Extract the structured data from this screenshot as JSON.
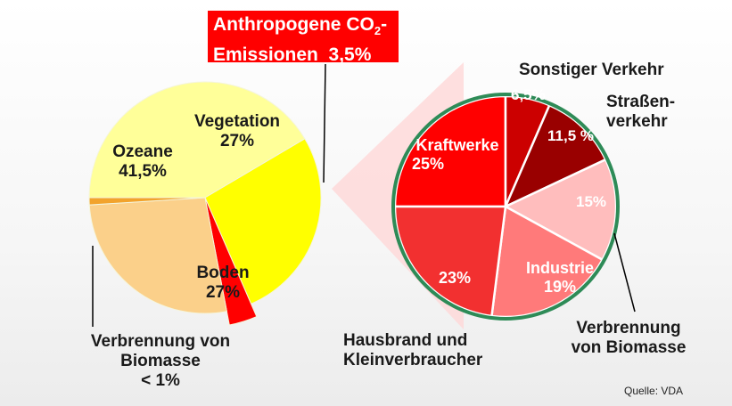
{
  "chart_data": [
    {
      "type": "pie",
      "slices": [
        {
          "label": "Ozeane",
          "value": 41.5,
          "value_label": "41,5%",
          "color": "#ffff99"
        },
        {
          "label": "Vegetation",
          "value": 27,
          "value_label": "27%",
          "color": "#ffff00"
        },
        {
          "label": "Anthropogene CO₂-Emissionen",
          "value": 3.5,
          "value_label": "3,5%",
          "color": "#ff0000"
        },
        {
          "label": "Boden",
          "value": 27,
          "value_label": "27%",
          "color": "#fbd08a"
        },
        {
          "label": "Verbrennung von Biomasse",
          "value": 1,
          "value_label": "< 1%",
          "color": "#f2a32c"
        }
      ]
    },
    {
      "type": "pie",
      "slices": [
        {
          "label": "Kraftwerke",
          "value": 25,
          "value_label": "25%",
          "color": "#ff0000"
        },
        {
          "label": "Sonstiger Verkehr",
          "value": 6.5,
          "value_label": "6,5%",
          "color": "#cc0000"
        },
        {
          "label": "Straßenverkehr",
          "value": 11.5,
          "value_label": "11,5 %",
          "color": "#990000"
        },
        {
          "label": "Verbrennung von Biomasse",
          "value": 15,
          "value_label": "15%",
          "color": "#ffbdbd"
        },
        {
          "label": "Industrie",
          "value": 19,
          "value_label": "19%",
          "color": "#ff7a7a"
        },
        {
          "label": "Hausbrand und Kleinverbraucher",
          "value": 23,
          "value_label": "23%",
          "color": "#f23030"
        }
      ]
    }
  ],
  "callout": {
    "line1": "Anthropogene CO",
    "sub": "2",
    "dash": "-",
    "line2": "Emissionen  3,5%"
  },
  "labels": {
    "ozeane": "Ozeane",
    "ozeane_value": "41,5%",
    "vegetation": "Vegetation",
    "vegetation_value": "27%",
    "boden": "Boden",
    "boden_value": "27%",
    "biomasse_left_1": "Verbrennung von",
    "biomasse_left_2": "Biomasse",
    "biomasse_left_3": "< 1%",
    "kraftwerke": "Kraftwerke",
    "kraftwerke_value": "25%",
    "sonstiger": "Sonstiger Verkehr",
    "sonstiger_value": "6,5%",
    "strassen_1": "Straßen-",
    "strassen_2": "verkehr",
    "strassen_value": "11,5 %",
    "biomasse_right_value": "15%",
    "biomasse_right_1": "Verbrennung",
    "biomasse_right_2": "von Biomasse",
    "industrie": "Industrie",
    "industrie_value": "19%",
    "hausbrand_value": "23%",
    "hausbrand_1": "Hausbrand und",
    "hausbrand_2": "Kleinverbraucher"
  },
  "source": "Quelle: VDA"
}
